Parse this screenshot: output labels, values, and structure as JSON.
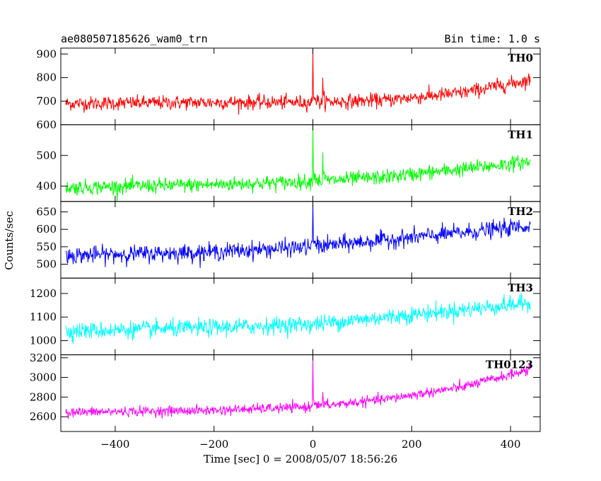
{
  "header": {
    "title": "ae080507185626_wam0_trn",
    "bin_time": "Bin time: 1.0 s"
  },
  "chart_data": {
    "type": "line",
    "title": "ae080507185626_wam0_trn",
    "subtitle": "Bin time: 1.0 s",
    "xlabel": "Time [sec] 0 = 2008/05/07 18:56:26",
    "ylabel": "Counts/sec",
    "xlim": [
      -510,
      460
    ],
    "x_ticks": [
      -400,
      -200,
      0,
      200,
      400
    ],
    "x_tick_labels": [
      "−400",
      "−200",
      "0",
      "200",
      "400"
    ],
    "x_data_range": [
      -500,
      440
    ],
    "bin_seconds": 1.0,
    "grid": false,
    "panels": [
      {
        "label": "TH0",
        "color": "#ff0000",
        "ylim": [
          600,
          925
        ],
        "yticks": [
          600,
          700,
          800,
          900
        ],
        "ytick_labels": [
          "600",
          "700",
          "800",
          "900"
        ],
        "baseline_x": [
          -500,
          -200,
          0,
          150,
          300,
          440
        ],
        "baseline_y": [
          690,
          695,
          695,
          705,
          735,
          790
        ],
        "noise": 30,
        "spikes": [
          {
            "t": 0,
            "peak": 925
          },
          {
            "t": 20,
            "peak": 800
          }
        ]
      },
      {
        "label": "TH1",
        "color": "#00ff00",
        "ylim": [
          350,
          600
        ],
        "yticks": [
          400,
          500
        ],
        "ytick_labels": [
          "400",
          "500"
        ],
        "baseline_x": [
          -500,
          -200,
          0,
          150,
          300,
          440
        ],
        "baseline_y": [
          395,
          405,
          415,
          430,
          455,
          480
        ],
        "noise": 24,
        "spikes": [
          {
            "t": 0,
            "peak": 600
          },
          {
            "t": 20,
            "peak": 510
          }
        ]
      },
      {
        "label": "TH2",
        "color": "#0000ff",
        "ylim": [
          460,
          680
        ],
        "yticks": [
          500,
          550,
          600,
          650
        ],
        "ytick_labels": [
          "500",
          "550",
          "600",
          "650"
        ],
        "baseline_x": [
          -500,
          -200,
          0,
          150,
          300,
          440
        ],
        "baseline_y": [
          525,
          535,
          550,
          570,
          590,
          610
        ],
        "noise": 24,
        "spikes": [
          {
            "t": 0,
            "peak": 680
          }
        ]
      },
      {
        "label": "TH3",
        "color": "#00ffff",
        "ylim": [
          940,
          1265
        ],
        "yticks": [
          1000,
          1100,
          1200
        ],
        "ytick_labels": [
          "1000",
          "1100",
          "1200"
        ],
        "baseline_x": [
          -500,
          -200,
          0,
          150,
          300,
          440
        ],
        "baseline_y": [
          1040,
          1055,
          1070,
          1100,
          1130,
          1160
        ],
        "noise": 36,
        "spikes": []
      },
      {
        "label": "TH0123",
        "color": "#ff00ff",
        "ylim": [
          2450,
          3230
        ],
        "yticks": [
          2600,
          2800,
          3000,
          3200
        ],
        "ytick_labels": [
          "2600",
          "2800",
          "3000",
          "3200"
        ],
        "baseline_x": [
          -500,
          -200,
          0,
          150,
          300,
          440
        ],
        "baseline_y": [
          2645,
          2665,
          2700,
          2780,
          2900,
          3080
        ],
        "noise": 50,
        "spikes": [
          {
            "t": 0,
            "peak": 3200
          },
          {
            "t": 20,
            "peak": 2850
          }
        ]
      }
    ]
  }
}
